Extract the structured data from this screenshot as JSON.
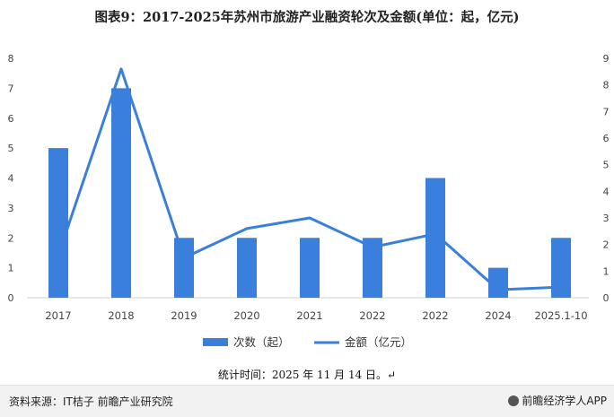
{
  "page": {
    "title": "图表9：2017-2025年苏州市旅游产业融资轮次及金额(单位：起，亿元)",
    "footnote": "统计时间：2025 年 11 月 14 日。↵",
    "source": "资料来源：IT桔子 前瞻产业研究院",
    "brand": "前瞻经济学人APP",
    "watermark": "前瞻产业研究院"
  },
  "chart_data": {
    "type": "bar+line",
    "categories": [
      "2017",
      "2018",
      "2019",
      "2020",
      "2021",
      "2022",
      "2022",
      "2024",
      "2025.1-10"
    ],
    "series": [
      {
        "name": "次数（起）",
        "type": "bar",
        "axis": "left",
        "color": "#3a7fdc",
        "values": [
          5,
          7,
          2,
          2,
          2,
          2,
          4,
          1,
          2
        ]
      },
      {
        "name": "金额（亿元）",
        "type": "line",
        "axis": "right",
        "color": "#3a7fdc",
        "values": [
          1.6,
          8.6,
          1.5,
          2.6,
          3.0,
          1.9,
          2.4,
          0.3,
          0.4
        ]
      }
    ],
    "y_left": {
      "min": 0,
      "max": 8,
      "ticks": [
        "0",
        "1",
        "2",
        "3",
        "4",
        "5",
        "6",
        "7",
        "8"
      ]
    },
    "y_right": {
      "min": 0,
      "max": 9,
      "ticks": [
        "0",
        "1",
        "2",
        "3",
        "4",
        "5",
        "6",
        "7",
        "8",
        "9"
      ]
    },
    "grid": false,
    "legend_position": "bottom"
  }
}
